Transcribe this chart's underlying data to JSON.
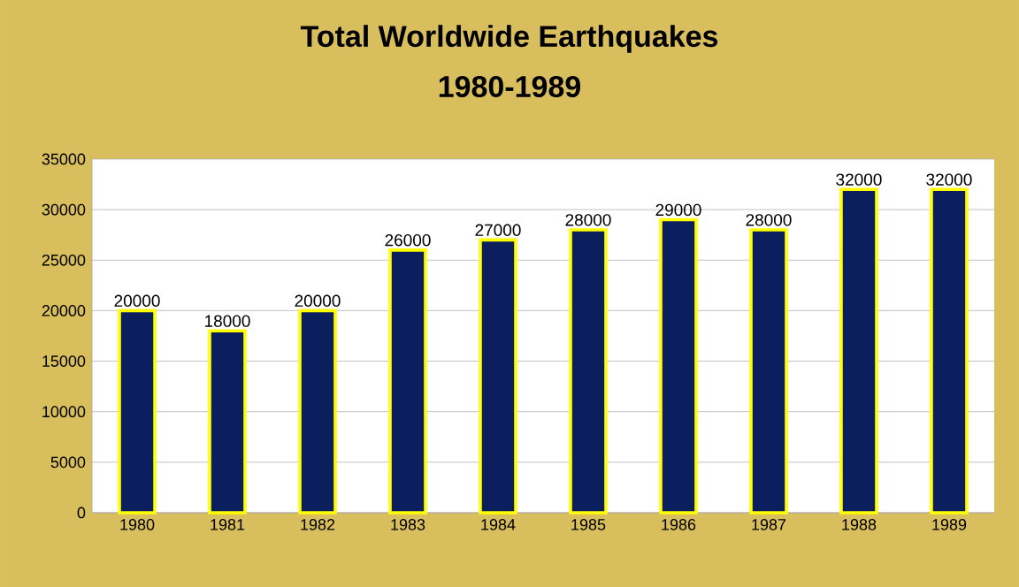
{
  "chart_data": {
    "type": "bar",
    "title": "Total Worldwide Earthquakes",
    "subtitle": "1980-1989",
    "categories": [
      "1980",
      "1981",
      "1982",
      "1983",
      "1984",
      "1985",
      "1986",
      "1987",
      "1988",
      "1989"
    ],
    "values": [
      20000,
      18000,
      20000,
      26000,
      27000,
      28000,
      29000,
      28000,
      32000,
      32000
    ],
    "color": "#0b1f5e",
    "ylim": [
      0,
      35000
    ],
    "yticks": [
      0,
      5000,
      10000,
      15000,
      20000,
      25000,
      30000,
      35000
    ],
    "grid": "y",
    "data_labels": true
  }
}
